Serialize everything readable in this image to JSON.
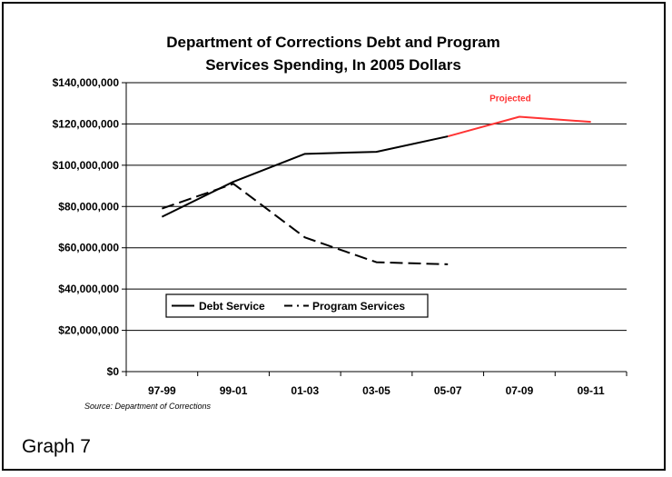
{
  "chart_data": {
    "type": "line",
    "title_lines": [
      "Department of Corrections Debt and Program",
      "Services Spending, In 2005 Dollars"
    ],
    "categories": [
      "97-99",
      "99-01",
      "01-03",
      "03-05",
      "05-07",
      "07-09",
      "09-11"
    ],
    "y_ticks": [
      "$0",
      "$20,000,000",
      "$40,000,000",
      "$60,000,000",
      "$80,000,000",
      "$100,000,000",
      "$120,000,000",
      "$140,000,000"
    ],
    "ylim": [
      0,
      140000000
    ],
    "grid": true,
    "legend_position": "lower-left",
    "series": [
      {
        "name": "Debt Service",
        "values": [
          75000000,
          92000000,
          105500000,
          106500000,
          114000000,
          123500000,
          121000000
        ],
        "color": "#000000",
        "style": "solid"
      },
      {
        "name": "Program Services",
        "values": [
          79000000,
          91000000,
          65000000,
          53000000,
          52000000,
          null,
          null
        ],
        "color": "#000000",
        "style": "dashed"
      }
    ],
    "projected": {
      "label": "Projected",
      "from_category": "05-07",
      "color": "#ff3333"
    },
    "source": "Source: Department of Corrections"
  },
  "caption": "Graph 7"
}
